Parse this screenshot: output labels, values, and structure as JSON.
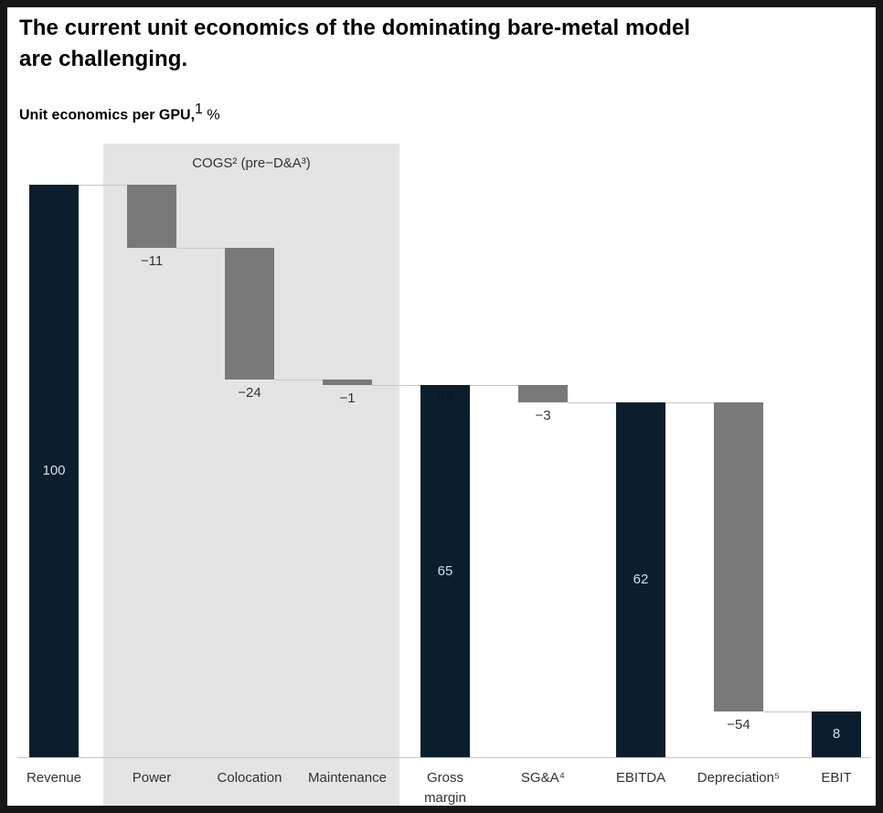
{
  "header": {
    "title": "The current unit economics of the dominating bare-metal model\nare challenging.",
    "subtitle_label": "Unit economics per GPU,",
    "subtitle_superscript": "1",
    "subtitle_unit": " %"
  },
  "chart_data": {
    "type": "bar",
    "subtype": "waterfall",
    "title": "Unit economics per GPU, %",
    "categories": [
      "Revenue",
      "Power",
      "Colocation",
      "Maintenance",
      "Gross\nmargin",
      "SG&A⁴",
      "EBITDA",
      "Depreciation⁵",
      "EBIT"
    ],
    "values": [
      100,
      -11,
      -24,
      -1,
      65,
      -3,
      62,
      -54,
      8
    ],
    "ylim": [
      0,
      100
    ],
    "grid": false,
    "legend": false,
    "band": {
      "label": "COGS² (pre−D&A³)",
      "covers": [
        "Power",
        "Colocation",
        "Maintenance"
      ],
      "color": "#e4e4e4"
    },
    "bars": [
      {
        "category": "Revenue",
        "label": "100",
        "value": 100,
        "start": 0,
        "end": 100,
        "kind": "total",
        "label_pos": "inside-center"
      },
      {
        "category": "Power",
        "label": "−11",
        "value": -11,
        "start": 100,
        "end": 89,
        "kind": "delta",
        "label_pos": "below"
      },
      {
        "category": "Colocation",
        "label": "−24",
        "value": -24,
        "start": 89,
        "end": 66,
        "kind": "delta",
        "label_pos": "below"
      },
      {
        "category": "Maintenance",
        "label": "−1",
        "value": -1,
        "start": 66,
        "end": 65,
        "kind": "delta",
        "label_pos": "below"
      },
      {
        "category": "Gross\nmargin",
        "label": "65",
        "value": 65,
        "start": 0,
        "end": 65,
        "kind": "total",
        "label_pos": "inside-center",
        "top_label": "65"
      },
      {
        "category": "SG&A⁴",
        "label": "−3",
        "value": -3,
        "start": 65,
        "end": 62,
        "kind": "delta",
        "label_pos": "below"
      },
      {
        "category": "EBITDA",
        "label": "62",
        "value": 62,
        "start": 0,
        "end": 62,
        "kind": "total",
        "label_pos": "inside-center"
      },
      {
        "category": "Depreciation⁵",
        "label": "−54",
        "value": -54,
        "start": 62,
        "end": 8,
        "kind": "delta",
        "label_pos": "below"
      },
      {
        "category": "EBIT",
        "label": "8",
        "value": 8,
        "start": 0,
        "end": 8,
        "kind": "total",
        "label_pos": "inside-center"
      }
    ],
    "colors": {
      "total_bar": "#0a1e2e",
      "delta_bar": "#797979",
      "band": "#e4e4e4",
      "axis_line": "#c7c7c7",
      "connector_line": "#c7c7c7",
      "value_light": "#d9dde0",
      "value_dark": "#101418",
      "label_text": "#333333",
      "frame_border": "#161616"
    }
  }
}
